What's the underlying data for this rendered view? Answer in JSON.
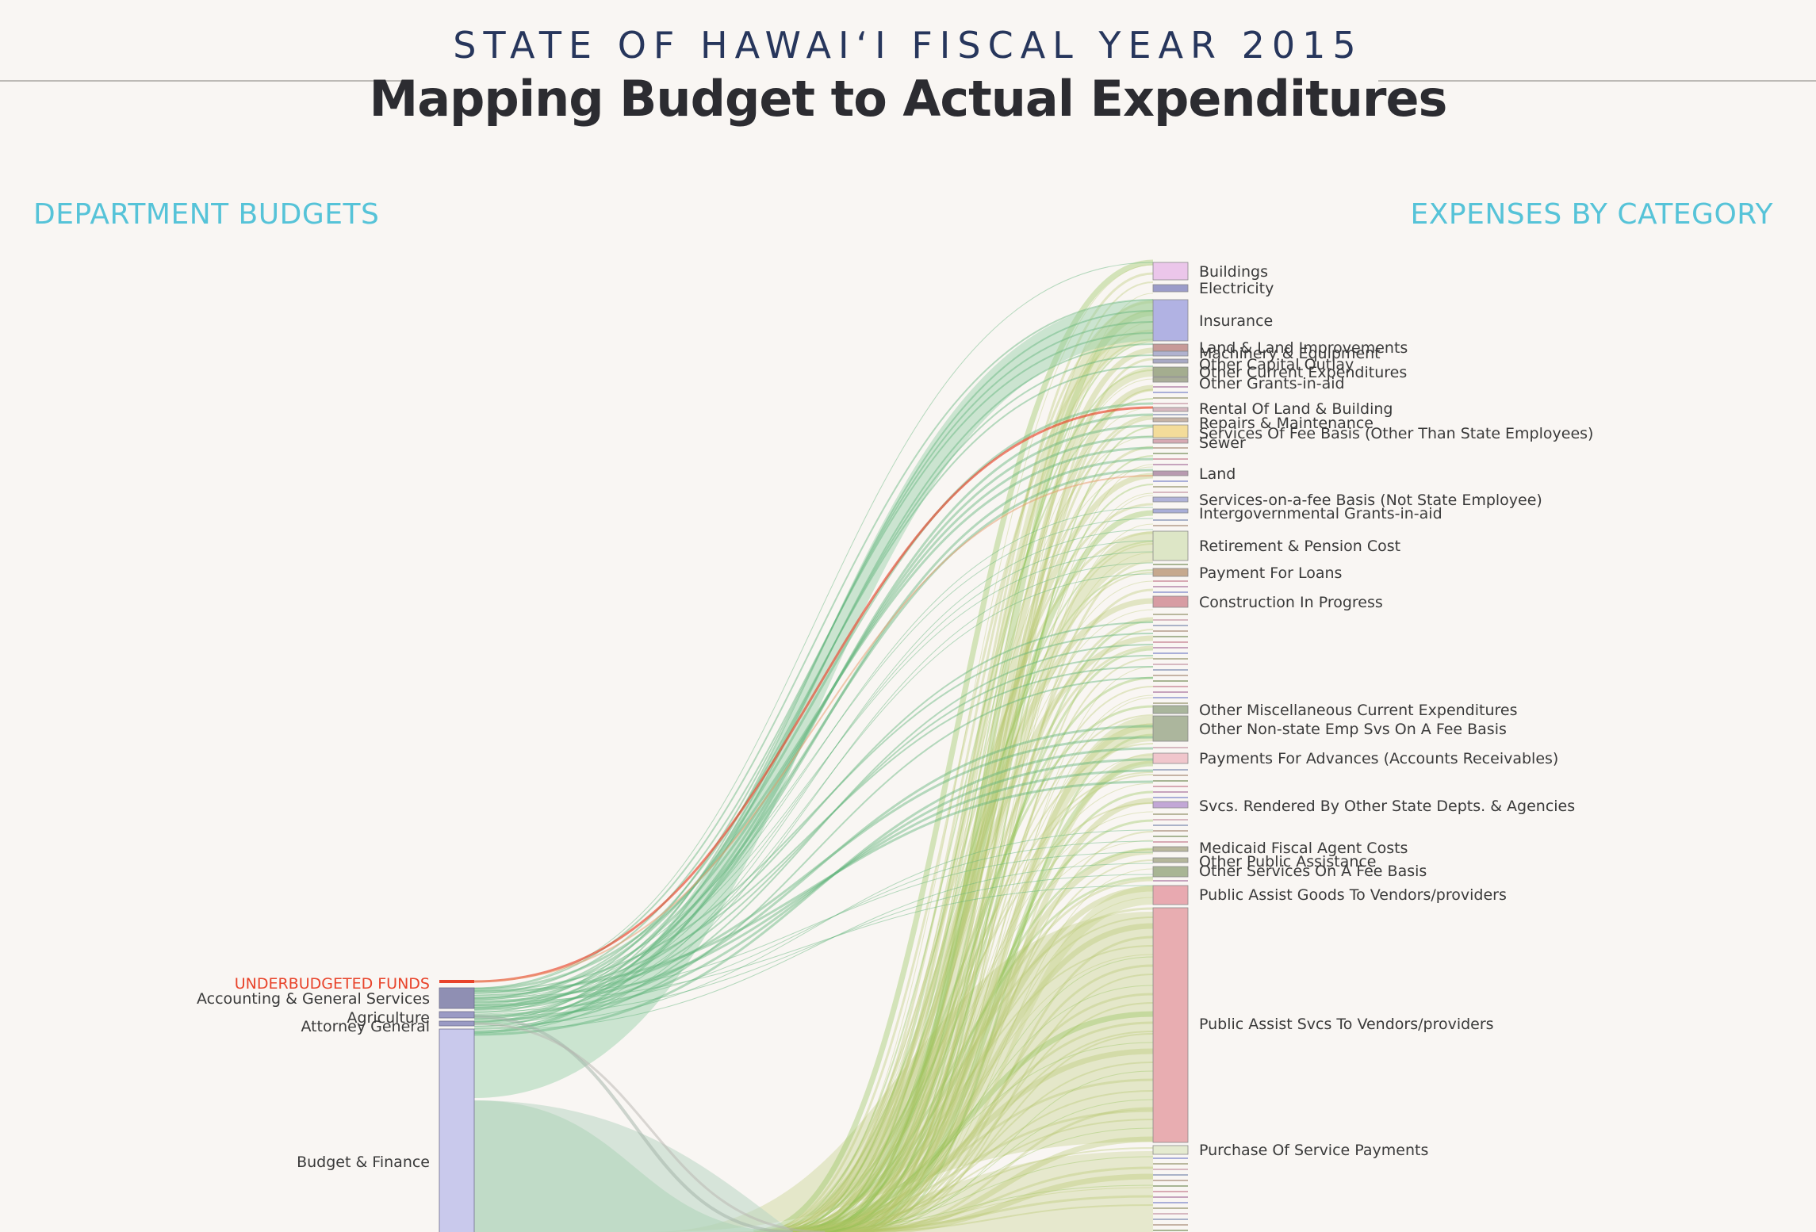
{
  "header": {
    "supertitle": "STATE OF HAWAIʻI FISCAL YEAR 2015",
    "title": "Mapping Budget to Actual Expenditures"
  },
  "left_heading": "DEPARTMENT BUDGETS",
  "right_heading": "EXPENSES BY CATEGORY",
  "colors": {
    "accent": "#56c3d8",
    "underbudget": "#e8432a",
    "flow_dept": "#7cc49a",
    "flow_expense": "#b7c96a",
    "background": "#f9f6f3"
  },
  "departments": [
    {
      "label": "UNDERBUDGETED FUNDS",
      "highlight": true,
      "color": "#e8432a"
    },
    {
      "label": "Accounting & General Services",
      "color": "#8f8fb3"
    },
    {
      "label": "Agriculture",
      "color": "#9a9ac4"
    },
    {
      "label": "Attorney General",
      "color": "#9a9ac4"
    },
    {
      "label": "Budget & Finance",
      "color": "#c9c9ec"
    }
  ],
  "expense_categories": [
    {
      "label": "Buildings",
      "color": "#ebc6ea"
    },
    {
      "label": "Electricity",
      "color": "#9b9cc9"
    },
    {
      "label": "Insurance",
      "color": "#b1b2e3"
    },
    {
      "label": "Land & Land Improvements",
      "color": "#c79a98"
    },
    {
      "label": "Machinery & Equipment",
      "color": "#b0b2cf"
    },
    {
      "label": "Other Capital Outlay",
      "color": "#a8a9c4"
    },
    {
      "label": "Other Current Expenditures",
      "color": "#a4ad8f"
    },
    {
      "label": "Other Grants-in-aid",
      "color": "#a9ad98"
    },
    {
      "label": "Rental Of Land & Building",
      "color": "#d7b8c0"
    },
    {
      "label": "Repairs & Maintenance",
      "color": "#c5b3a5"
    },
    {
      "label": "Services Of Fee Basis (Other Than State Employees)",
      "color": "#f3dc9a"
    },
    {
      "label": "Sewer",
      "color": "#d7a9b3"
    },
    {
      "label": "Land",
      "color": "#b89ab0"
    },
    {
      "label": "Services-on-a-fee Basis (Not State Employee)",
      "color": "#b0b2d8"
    },
    {
      "label": "Intergovernmental Grants-in-aid",
      "color": "#a9aed8"
    },
    {
      "label": "Retirement & Pension Cost",
      "color": "#dde6c6"
    },
    {
      "label": "Payment For Loans",
      "color": "#c6a98e"
    },
    {
      "label": "Construction In Progress",
      "color": "#d79ca3"
    },
    {
      "label": "Other Miscellaneous Current Expenditures",
      "color": "#a9b59c"
    },
    {
      "label": "Other Non-state Emp Svs On A Fee Basis",
      "color": "#acb69d"
    },
    {
      "label": "Payments For Advances (Accounts Receivables)",
      "color": "#f0c6cc"
    },
    {
      "label": "Svcs. Rendered By Other State Depts. & Agencies",
      "color": "#c2a7d6"
    },
    {
      "label": "Medicaid Fiscal Agent Costs",
      "color": "#b9b79d"
    },
    {
      "label": "Other Public Assistance",
      "color": "#b4b69b"
    },
    {
      "label": "Other Services On A Fee Basis",
      "color": "#a8b594"
    },
    {
      "label": "Public Assist Goods To Vendors/providers",
      "color": "#e8a9b0"
    },
    {
      "label": "Public Assist Svcs To Vendors/providers",
      "color": "#e8adb1"
    },
    {
      "label": "Purchase Of Service Payments",
      "color": "#e4ead0"
    }
  ]
}
